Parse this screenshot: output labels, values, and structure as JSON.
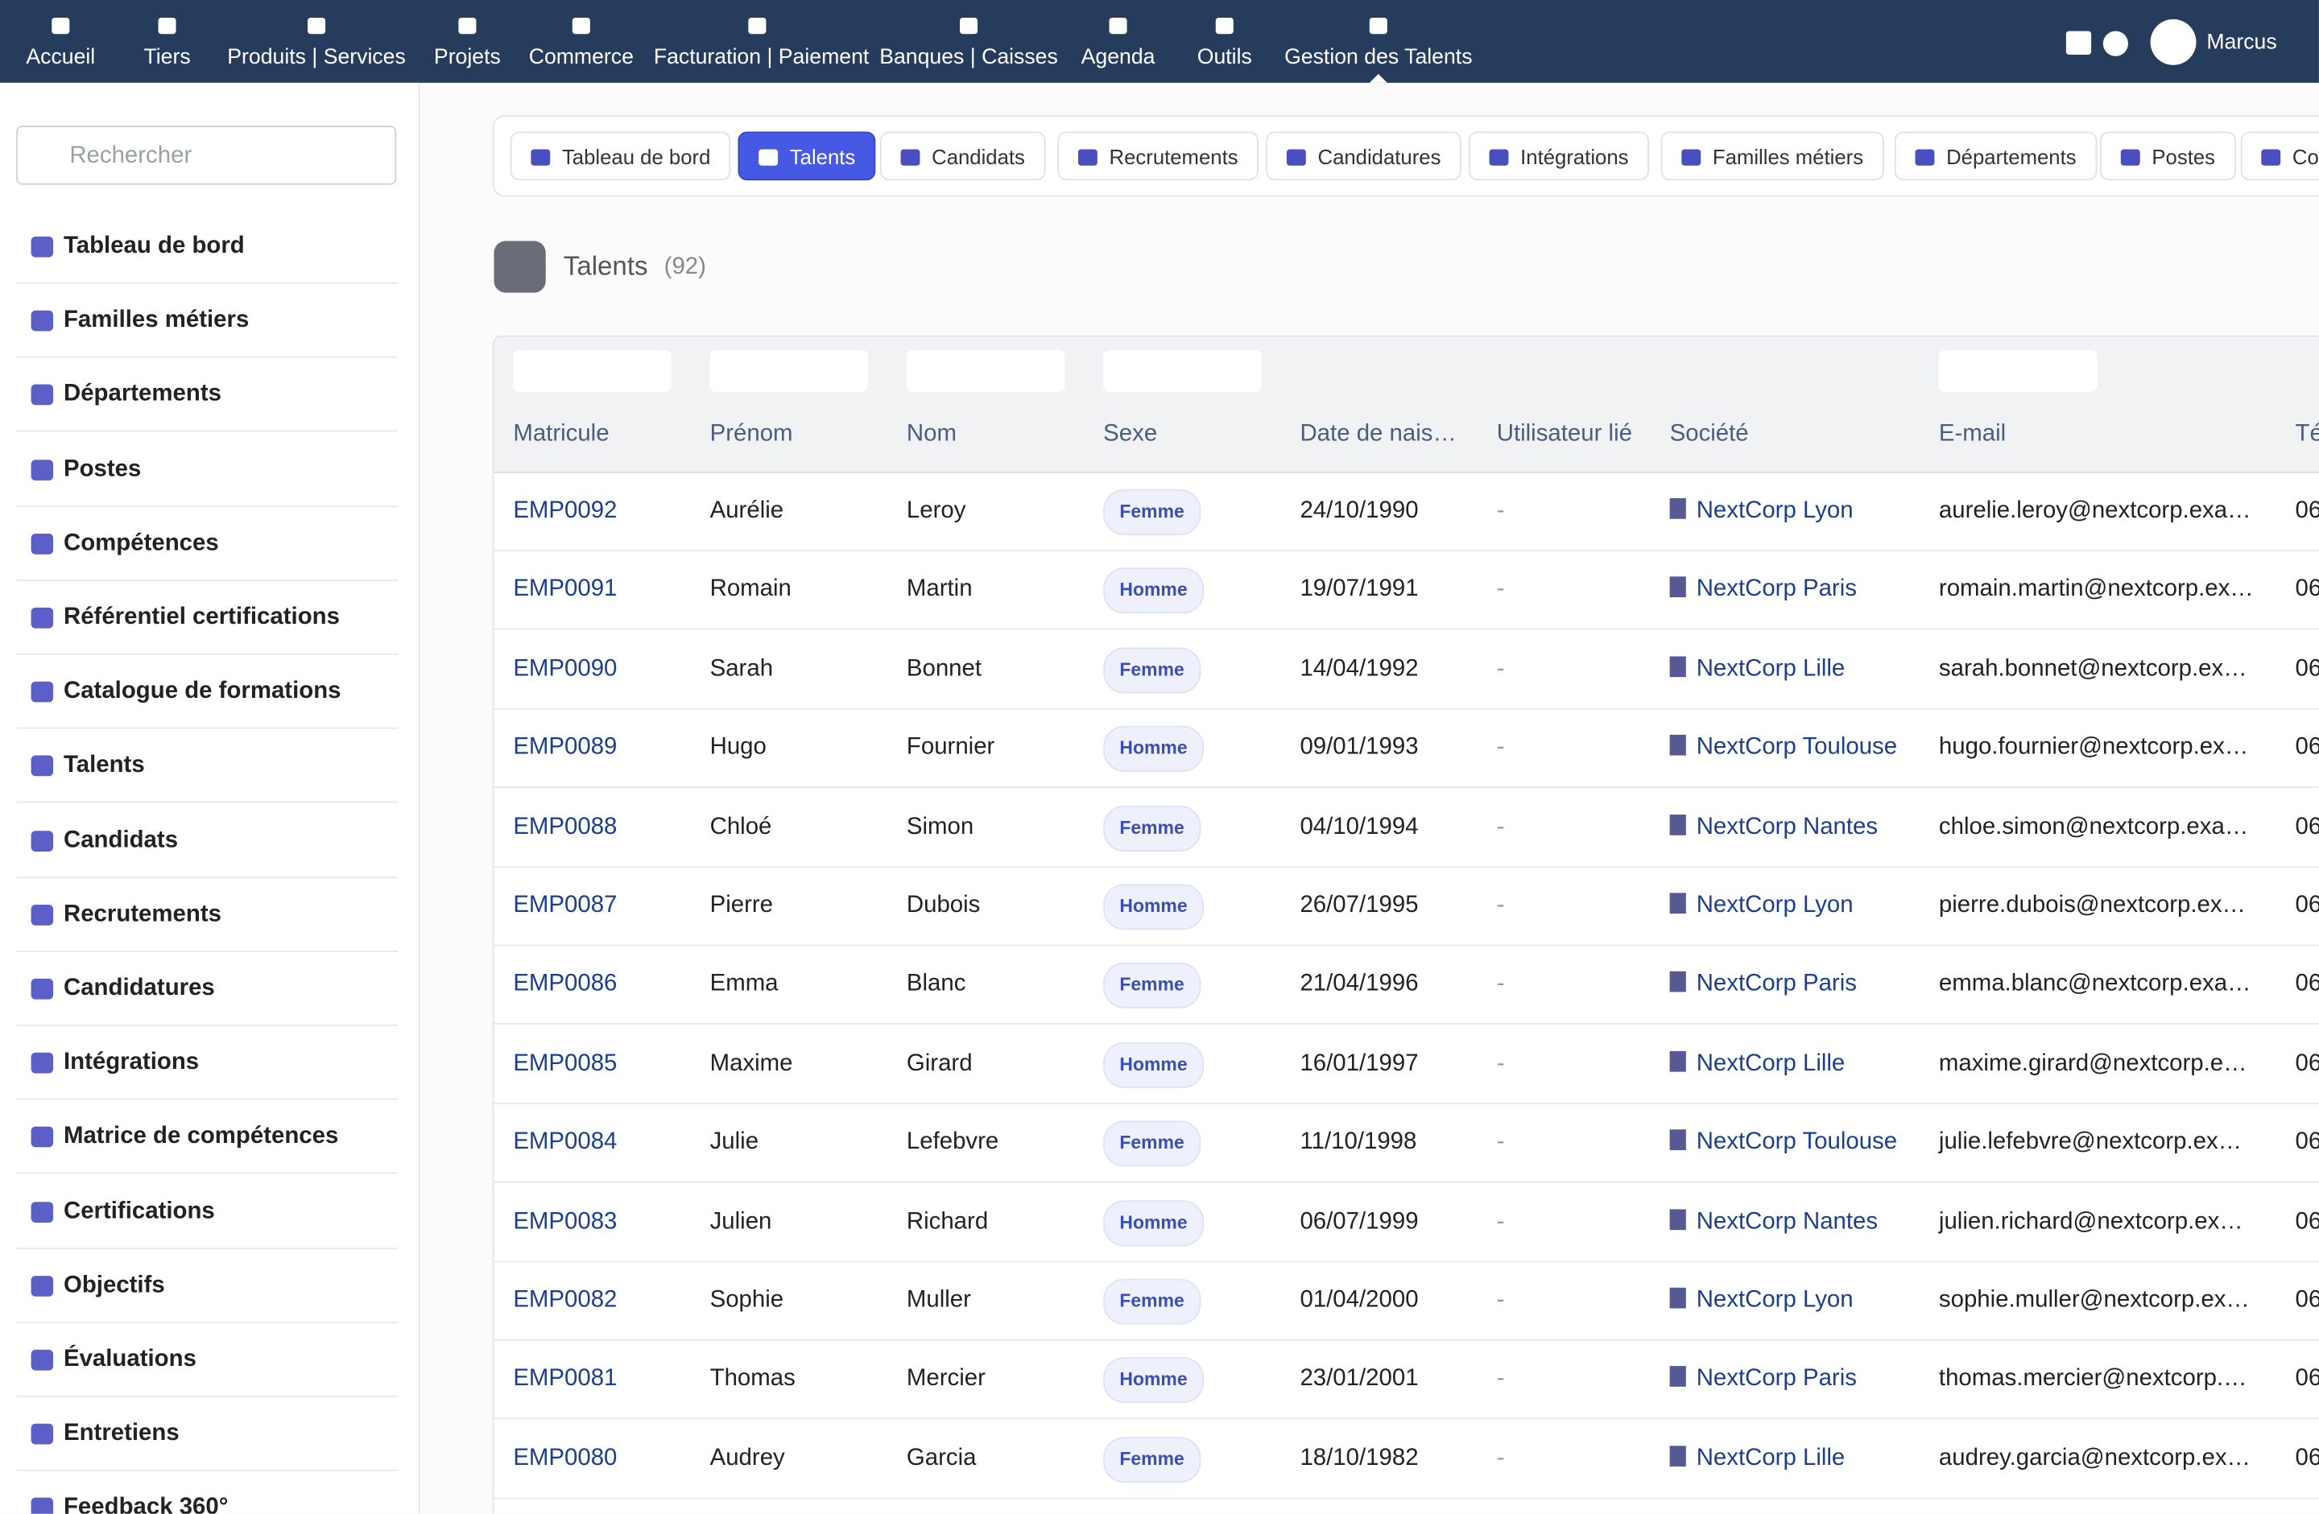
{
  "nav": {
    "items": [
      "Accueil",
      "Tiers",
      "Produits | Services",
      "Projets",
      "Commerce",
      "Facturation | Paiement",
      "Banques | Caisses",
      "Agenda",
      "Outils",
      "Gestion des Talents"
    ],
    "user": "Marcus"
  },
  "sidebar": {
    "search_placeholder": "Rechercher",
    "items": [
      "Tableau de bord",
      "Familles métiers",
      "Départements",
      "Postes",
      "Compétences",
      "Référentiel certifications",
      "Catalogue de formations",
      "Talents",
      "Candidats",
      "Recrutements",
      "Candidatures",
      "Intégrations",
      "Matrice de compétences",
      "Certifications",
      "Objectifs",
      "Évaluations",
      "Entretiens",
      "Feedback 360°"
    ]
  },
  "tabs": [
    "Tableau de bord",
    "Talents",
    "Candidats",
    "Recrutements",
    "Candidatures",
    "Intégrations",
    "Familles métiers",
    "Départements",
    "Postes",
    "Co"
  ],
  "page": {
    "title": "Talents",
    "count": "(92)"
  },
  "table": {
    "headers": [
      "Matricule",
      "Prénom",
      "Nom",
      "Sexe",
      "Date de nais…",
      "Utilisateur lié",
      "Société",
      "E-mail",
      "Té"
    ],
    "rows": [
      [
        "EMP0092",
        "Aurélie",
        "Leroy",
        "Femme",
        "24/10/1990",
        "-",
        "NextCorp Lyon",
        "aurelie.leroy@nextcorp.exa…",
        "06"
      ],
      [
        "EMP0091",
        "Romain",
        "Martin",
        "Homme",
        "19/07/1991",
        "-",
        "NextCorp Paris",
        "romain.martin@nextcorp.ex…",
        "06"
      ],
      [
        "EMP0090",
        "Sarah",
        "Bonnet",
        "Femme",
        "14/04/1992",
        "-",
        "NextCorp Lille",
        "sarah.bonnet@nextcorp.ex…",
        "06"
      ],
      [
        "EMP0089",
        "Hugo",
        "Fournier",
        "Homme",
        "09/01/1993",
        "-",
        "NextCorp Toulouse",
        "hugo.fournier@nextcorp.ex…",
        "06"
      ],
      [
        "EMP0088",
        "Chloé",
        "Simon",
        "Femme",
        "04/10/1994",
        "-",
        "NextCorp Nantes",
        "chloe.simon@nextcorp.exa…",
        "06"
      ],
      [
        "EMP0087",
        "Pierre",
        "Dubois",
        "Homme",
        "26/07/1995",
        "-",
        "NextCorp Lyon",
        "pierre.dubois@nextcorp.ex…",
        "06"
      ],
      [
        "EMP0086",
        "Emma",
        "Blanc",
        "Femme",
        "21/04/1996",
        "-",
        "NextCorp Paris",
        "emma.blanc@nextcorp.exa…",
        "06"
      ],
      [
        "EMP0085",
        "Maxime",
        "Girard",
        "Homme",
        "16/01/1997",
        "-",
        "NextCorp Lille",
        "maxime.girard@nextcorp.e…",
        "06"
      ],
      [
        "EMP0084",
        "Julie",
        "Lefebvre",
        "Femme",
        "11/10/1998",
        "-",
        "NextCorp Toulouse",
        "julie.lefebvre@nextcorp.ex…",
        "06"
      ],
      [
        "EMP0083",
        "Julien",
        "Richard",
        "Homme",
        "06/07/1999",
        "-",
        "NextCorp Nantes",
        "julien.richard@nextcorp.ex…",
        "06"
      ],
      [
        "EMP0082",
        "Sophie",
        "Muller",
        "Femme",
        "01/04/2000",
        "-",
        "NextCorp Lyon",
        "sophie.muller@nextcorp.ex…",
        "06"
      ],
      [
        "EMP0081",
        "Thomas",
        "Mercier",
        "Homme",
        "23/01/2001",
        "-",
        "NextCorp Paris",
        "thomas.mercier@nextcorp.…",
        "06"
      ],
      [
        "EMP0080",
        "Audrey",
        "Garcia",
        "Femme",
        "18/10/1982",
        "-",
        "NextCorp Lille",
        "audrey.garcia@nextcorp.ex…",
        "06"
      ]
    ]
  }
}
